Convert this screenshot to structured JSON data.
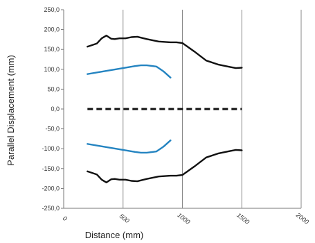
{
  "chart_data": {
    "type": "line",
    "title": "",
    "xlabel": "Distance (mm)",
    "ylabel": "Parallel Displacement (mm)",
    "xlim": [
      0,
      2000
    ],
    "ylim": [
      -250,
      250
    ],
    "x_ticks": [
      0,
      500,
      1000,
      1500,
      2000
    ],
    "x_tick_labels": [
      "0",
      "500",
      "1000",
      "1500",
      "2000"
    ],
    "y_ticks": [
      250,
      200,
      150,
      100,
      50,
      0,
      -50,
      -100,
      -150,
      -200,
      -250
    ],
    "y_tick_labels": [
      "250,0",
      "200,0",
      "150,0",
      "100,0",
      "50,0",
      "0,0",
      "-50,0",
      "-100,0",
      "-150,0",
      "-200,0",
      "-250,0"
    ],
    "grid": "vertical",
    "legend": "none",
    "series": [
      {
        "color": "#111111",
        "style": "solid",
        "x": [
          200,
          280,
          320,
          360,
          400,
          430,
          470,
          520,
          570,
          620,
          700,
          800,
          900,
          950,
          1000,
          1100,
          1200,
          1300,
          1400,
          1450,
          1500
        ],
        "y": [
          157,
          165,
          178,
          185,
          177,
          176,
          178,
          178,
          181,
          182,
          176,
          170,
          168,
          168,
          166,
          145,
          122,
          112,
          106,
          103,
          104
        ]
      },
      {
        "color": "#111111",
        "style": "solid",
        "x": [
          200,
          280,
          320,
          360,
          400,
          430,
          470,
          520,
          570,
          620,
          700,
          800,
          900,
          950,
          1000,
          1100,
          1200,
          1300,
          1400,
          1450,
          1500
        ],
        "y": [
          -157,
          -165,
          -178,
          -185,
          -177,
          -176,
          -178,
          -178,
          -181,
          -182,
          -176,
          -170,
          -168,
          -168,
          -166,
          -145,
          -122,
          -112,
          -106,
          -103,
          -104
        ]
      },
      {
        "color": "#2484c1",
        "style": "solid",
        "x": [
          200,
          300,
          400,
          500,
          600,
          650,
          700,
          780,
          840,
          900
        ],
        "y": [
          88,
          93,
          98,
          103,
          108,
          110,
          110,
          107,
          95,
          79
        ]
      },
      {
        "color": "#2484c1",
        "style": "solid",
        "x": [
          200,
          300,
          400,
          500,
          600,
          650,
          700,
          780,
          840,
          900
        ],
        "y": [
          -88,
          -93,
          -98,
          -103,
          -108,
          -110,
          -110,
          -107,
          -95,
          -79
        ]
      },
      {
        "color": "#111111",
        "style": "dashed",
        "x": [
          200,
          1500
        ],
        "y": [
          0,
          0
        ]
      }
    ]
  }
}
